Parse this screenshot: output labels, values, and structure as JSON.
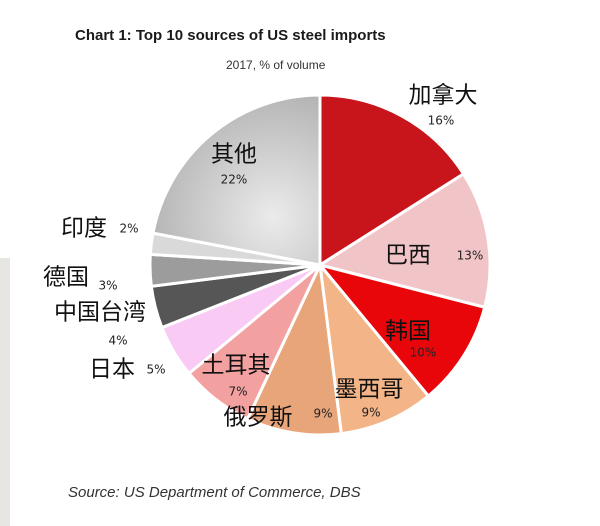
{
  "chart_data": {
    "type": "pie",
    "title": "Chart 1: Top 10 sources of US steel imports",
    "subtitle": "2017, % of volume",
    "source": "Source: US Department of Commerce, DBS",
    "unit": "%",
    "slices": [
      {
        "label": "加拿大",
        "value": 16,
        "value_label": "16%",
        "color": "#c8141b"
      },
      {
        "label": "巴西",
        "value": 13,
        "value_label": "13%",
        "color": "#f1c5c7"
      },
      {
        "label": "韩国",
        "value": 10,
        "value_label": "10%",
        "color": "#e8060b"
      },
      {
        "label": "墨西哥",
        "value": 9,
        "value_label": "9%",
        "color": "#f3b488"
      },
      {
        "label": "俄罗斯",
        "value": 9,
        "value_label": "9%",
        "color": "#e9a57a"
      },
      {
        "label": "土耳其",
        "value": 7,
        "value_label": "7%",
        "color": "#f2a1a0"
      },
      {
        "label": "日本",
        "value": 5,
        "value_label": "5%",
        "color": "#f8caf4"
      },
      {
        "label": "中国台湾",
        "value": 4,
        "value_label": "4%",
        "color": "#565656"
      },
      {
        "label": "德国",
        "value": 3,
        "value_label": "3%",
        "color": "#9c9c9c"
      },
      {
        "label": "印度",
        "value": 2,
        "value_label": "2%",
        "color": "#d9d9d9"
      },
      {
        "label": "其他",
        "value": 22,
        "value_label": "22%",
        "color": "#c4c4c4"
      }
    ]
  }
}
